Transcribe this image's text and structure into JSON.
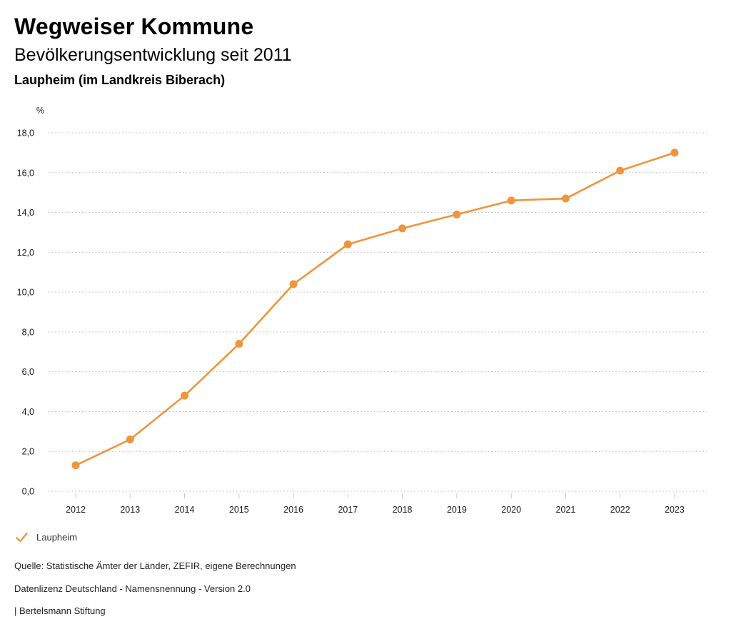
{
  "header": {
    "title": "Wegweiser Kommune",
    "subtitle": "Bevölkerungsentwicklung seit 2011",
    "location": "Laupheim (im Landkreis Biberach)"
  },
  "chart_data": {
    "type": "line",
    "title": "Bevölkerungsentwicklung seit 2011",
    "subtitle": "Laupheim (im Landkreis Biberach)",
    "ylabel": "%",
    "xlabel": "",
    "categories": [
      "2012",
      "2013",
      "2014",
      "2015",
      "2016",
      "2017",
      "2018",
      "2019",
      "2020",
      "2021",
      "2022",
      "2023"
    ],
    "series": [
      {
        "name": "Laupheim",
        "color": "#F0943D",
        "values": [
          1.3,
          2.6,
          4.8,
          7.4,
          10.4,
          12.4,
          13.2,
          13.9,
          14.6,
          14.7,
          16.1,
          17.0
        ]
      }
    ],
    "ylim": [
      0,
      18
    ],
    "ytick_step": 2,
    "ytick_labels": [
      "0,0",
      "2,0",
      "4,0",
      "6,0",
      "8,0",
      "10,0",
      "12,0",
      "14,0",
      "16,0",
      "18,0"
    ],
    "grid": "horizontal-dotted",
    "legend_position": "bottom-left",
    "marker": "circle"
  },
  "legend": {
    "items": [
      {
        "label": "Laupheim",
        "color": "#F0943D",
        "icon": "check-icon",
        "active": true
      }
    ]
  },
  "footer": {
    "source": "Quelle: Statistische Ämter der Länder, ZEFIR, eigene Berechnungen",
    "license": "Datenlizenz Deutschland - Namensnennung - Version 2.0",
    "attribution": "| Bertelsmann Stiftung"
  },
  "colors": {
    "accent": "#F0943D",
    "grid": "#b5b5b5",
    "tick": "#c8c8c8",
    "text": "#1a1a1a"
  }
}
